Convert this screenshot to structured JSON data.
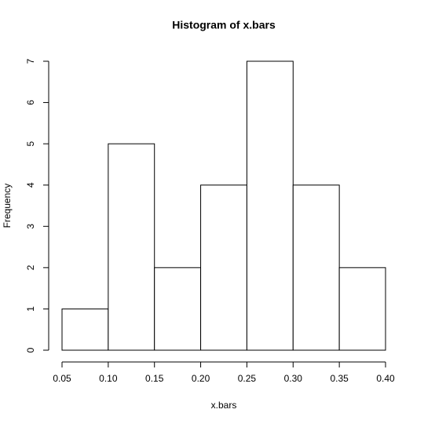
{
  "chart_data": {
    "type": "histogram",
    "title": "Histogram of x.bars",
    "x_label": "x.bars",
    "y_label": "Frequency",
    "bins": [
      0.05,
      0.1,
      0.15,
      0.2,
      0.25,
      0.3,
      0.35,
      0.4
    ],
    "values": [
      1,
      5,
      2,
      4,
      7,
      4,
      2
    ],
    "color": "#ffffff",
    "xlim": [
      0.05,
      0.4
    ],
    "xticks": [
      0.05,
      {
        "value": 0.1,
        "label": "0.10"
      },
      0.15,
      {
        "value": 0.2,
        "label": "0.20"
      },
      0.25,
      {
        "value": 0.3,
        "label": "0.30"
      },
      0.35,
      {
        "value": 0.4,
        "label": "0.40"
      }
    ],
    "ylim": [
      0,
      7
    ],
    "yticks": [
      0,
      1,
      2,
      3,
      4,
      5,
      6,
      7
    ],
    "grid": false
  }
}
